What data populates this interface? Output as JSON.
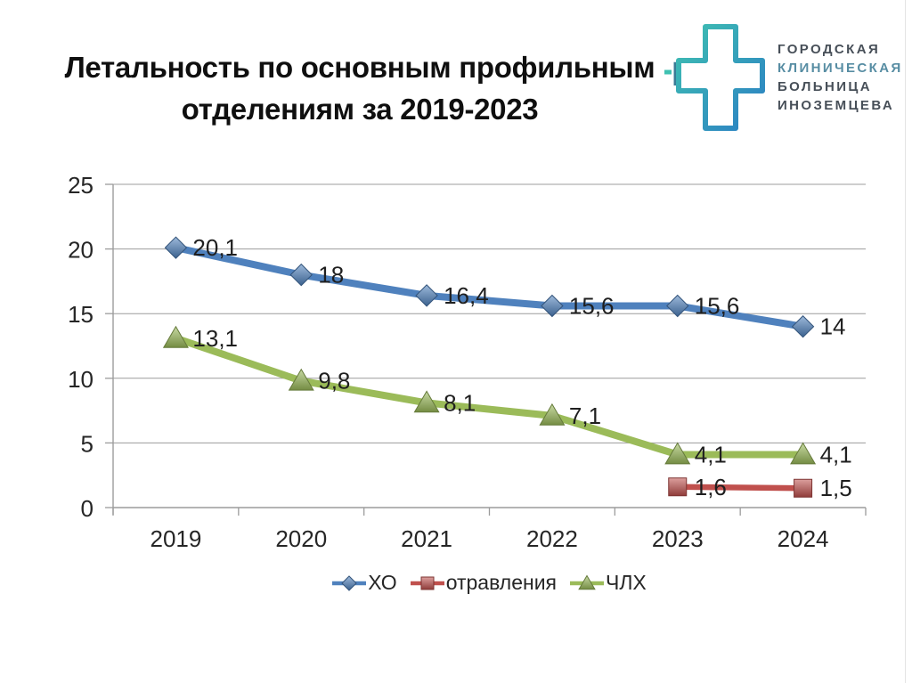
{
  "title": "Летальность по основным профильным отделениям за 2019-2023",
  "logo": {
    "letter": "И",
    "lines": [
      "ГОРОДСКАЯ",
      "КЛИНИЧЕСКАЯ",
      "БОЛЬНИЦА",
      "ИНОЗЕМЦЕВА"
    ],
    "colors": {
      "cross_start": "#3fc1b1",
      "cross_end": "#2b7fc4",
      "letter": "#3a7a96",
      "text_gray": "#474f58",
      "text_accent": "#578da3"
    }
  },
  "chart_data": {
    "type": "line",
    "categories": [
      "2019",
      "2020",
      "2021",
      "2022",
      "2023",
      "2024"
    ],
    "series": [
      {
        "name": "ХО",
        "marker": "diamond",
        "color": "#4F81BD",
        "values": [
          20.1,
          18,
          16.4,
          15.6,
          15.6,
          14
        ],
        "labels": [
          "20,1",
          "18",
          "16,4",
          "15,6",
          "15,6",
          "14"
        ]
      },
      {
        "name": "отравления",
        "marker": "square",
        "color": "#C0504D",
        "values": [
          null,
          null,
          null,
          null,
          1.6,
          1.5
        ],
        "labels": [
          null,
          null,
          null,
          null,
          "1,6",
          "1,5"
        ]
      },
      {
        "name": "ЧЛХ",
        "marker": "triangle",
        "color": "#9BBB59",
        "values": [
          13.1,
          9.8,
          8.1,
          7.1,
          4.1,
          4.1
        ],
        "labels": [
          "13,1",
          "9,8",
          "8,1",
          "7,1",
          "4,1",
          "4,1"
        ]
      }
    ],
    "ylim": [
      0,
      25
    ],
    "ytick_step": 5,
    "grid": true,
    "legend_position": "bottom",
    "axis_color": "#9c9c9c",
    "label_color": "#1f1f1f"
  }
}
